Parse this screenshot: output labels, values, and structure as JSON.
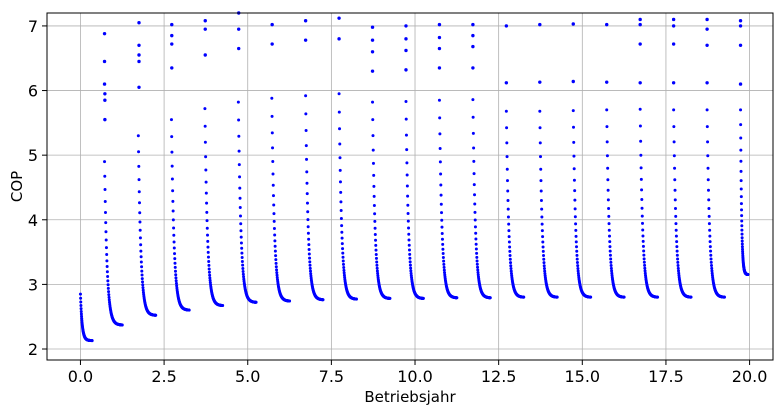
{
  "chart_data": {
    "type": "scatter",
    "title": "",
    "xlabel": "Betriebsjahr",
    "ylabel": "COP",
    "xlim": [
      -1.0,
      20.7
    ],
    "ylim": [
      1.83,
      7.2
    ],
    "xticks": [
      0.0,
      2.5,
      5.0,
      7.5,
      10.0,
      12.5,
      15.0,
      17.5,
      20.0
    ],
    "xtick_labels": [
      "0.0",
      "2.5",
      "5.0",
      "7.5",
      "10.0",
      "12.5",
      "15.0",
      "17.5",
      "20.0"
    ],
    "yticks": [
      2,
      3,
      4,
      5,
      6,
      7
    ],
    "ytick_labels": [
      "2",
      "3",
      "4",
      "5",
      "6",
      "7"
    ],
    "grid": true,
    "series_color": "#0000ff",
    "pattern": "annual heating-season cycles: COP jumps to a peak at the start of each season, decays toward a floor by season end",
    "seasons": [
      {
        "start": 0.0,
        "end": 0.35,
        "peak": 2.85,
        "floor": 2.13
      },
      {
        "start": 0.72,
        "end": 1.25,
        "peak": 4.9,
        "floor": 2.37
      },
      {
        "start": 1.73,
        "end": 2.25,
        "peak": 5.3,
        "floor": 2.52
      },
      {
        "start": 2.72,
        "end": 3.25,
        "peak": 5.55,
        "floor": 2.6
      },
      {
        "start": 3.72,
        "end": 4.25,
        "peak": 5.72,
        "floor": 2.67
      },
      {
        "start": 4.72,
        "end": 5.25,
        "peak": 5.82,
        "floor": 2.72
      },
      {
        "start": 5.72,
        "end": 6.25,
        "peak": 5.88,
        "floor": 2.74
      },
      {
        "start": 6.73,
        "end": 7.25,
        "peak": 5.92,
        "floor": 2.76
      },
      {
        "start": 7.73,
        "end": 8.25,
        "peak": 5.95,
        "floor": 2.77
      },
      {
        "start": 8.73,
        "end": 9.25,
        "peak": 5.82,
        "floor": 2.78
      },
      {
        "start": 9.73,
        "end": 10.25,
        "peak": 5.83,
        "floor": 2.78
      },
      {
        "start": 10.73,
        "end": 11.25,
        "peak": 5.85,
        "floor": 2.79
      },
      {
        "start": 11.73,
        "end": 12.25,
        "peak": 5.86,
        "floor": 2.79
      },
      {
        "start": 12.73,
        "end": 13.25,
        "peak": 5.68,
        "floor": 2.8
      },
      {
        "start": 13.73,
        "end": 14.25,
        "peak": 5.68,
        "floor": 2.8
      },
      {
        "start": 14.73,
        "end": 15.25,
        "peak": 5.69,
        "floor": 2.8
      },
      {
        "start": 15.73,
        "end": 16.25,
        "peak": 5.7,
        "floor": 2.8
      },
      {
        "start": 16.73,
        "end": 17.25,
        "peak": 5.71,
        "floor": 2.8
      },
      {
        "start": 17.73,
        "end": 18.25,
        "peak": 5.7,
        "floor": 2.8
      },
      {
        "start": 18.73,
        "end": 19.25,
        "peak": 5.7,
        "floor": 2.8
      },
      {
        "start": 19.73,
        "end": 19.95,
        "peak": 5.7,
        "floor": 3.15
      }
    ],
    "outliers": [
      {
        "x": 0.72,
        "y": 6.88
      },
      {
        "x": 0.72,
        "y": 6.45
      },
      {
        "x": 0.72,
        "y": 6.1
      },
      {
        "x": 0.73,
        "y": 5.95
      },
      {
        "x": 0.73,
        "y": 5.85
      },
      {
        "x": 0.73,
        "y": 5.55
      },
      {
        "x": 1.75,
        "y": 7.05
      },
      {
        "x": 1.75,
        "y": 6.7
      },
      {
        "x": 1.75,
        "y": 6.55
      },
      {
        "x": 1.75,
        "y": 6.45
      },
      {
        "x": 1.75,
        "y": 6.05
      },
      {
        "x": 2.73,
        "y": 7.02
      },
      {
        "x": 2.73,
        "y": 6.85
      },
      {
        "x": 2.73,
        "y": 6.72
      },
      {
        "x": 2.73,
        "y": 6.35
      },
      {
        "x": 3.73,
        "y": 7.08
      },
      {
        "x": 3.73,
        "y": 6.95
      },
      {
        "x": 3.73,
        "y": 6.55
      },
      {
        "x": 4.73,
        "y": 7.2
      },
      {
        "x": 4.73,
        "y": 6.95
      },
      {
        "x": 4.73,
        "y": 6.65
      },
      {
        "x": 5.73,
        "y": 7.02
      },
      {
        "x": 5.73,
        "y": 6.72
      },
      {
        "x": 6.73,
        "y": 7.08
      },
      {
        "x": 6.73,
        "y": 6.78
      },
      {
        "x": 7.73,
        "y": 7.12
      },
      {
        "x": 7.73,
        "y": 6.8
      },
      {
        "x": 8.73,
        "y": 6.98
      },
      {
        "x": 8.73,
        "y": 6.78
      },
      {
        "x": 8.73,
        "y": 6.6
      },
      {
        "x": 8.73,
        "y": 6.3
      },
      {
        "x": 9.73,
        "y": 7.0
      },
      {
        "x": 9.73,
        "y": 6.8
      },
      {
        "x": 9.73,
        "y": 6.62
      },
      {
        "x": 9.73,
        "y": 6.32
      },
      {
        "x": 10.73,
        "y": 7.02
      },
      {
        "x": 10.73,
        "y": 6.82
      },
      {
        "x": 10.73,
        "y": 6.65
      },
      {
        "x": 10.73,
        "y": 6.35
      },
      {
        "x": 11.73,
        "y": 7.02
      },
      {
        "x": 11.73,
        "y": 6.85
      },
      {
        "x": 11.73,
        "y": 6.68
      },
      {
        "x": 11.73,
        "y": 6.35
      },
      {
        "x": 12.73,
        "y": 7.0
      },
      {
        "x": 12.73,
        "y": 6.12
      },
      {
        "x": 13.73,
        "y": 7.02
      },
      {
        "x": 13.73,
        "y": 6.13
      },
      {
        "x": 14.73,
        "y": 7.03
      },
      {
        "x": 14.73,
        "y": 6.14
      },
      {
        "x": 15.73,
        "y": 7.02
      },
      {
        "x": 15.73,
        "y": 6.13
      },
      {
        "x": 16.73,
        "y": 7.1
      },
      {
        "x": 16.73,
        "y": 7.02
      },
      {
        "x": 16.73,
        "y": 6.72
      },
      {
        "x": 16.73,
        "y": 6.12
      },
      {
        "x": 17.73,
        "y": 7.1
      },
      {
        "x": 17.73,
        "y": 7.0
      },
      {
        "x": 17.73,
        "y": 6.72
      },
      {
        "x": 17.73,
        "y": 6.12
      },
      {
        "x": 18.73,
        "y": 7.1
      },
      {
        "x": 18.73,
        "y": 6.95
      },
      {
        "x": 18.73,
        "y": 6.7
      },
      {
        "x": 18.73,
        "y": 6.12
      },
      {
        "x": 19.73,
        "y": 7.08
      },
      {
        "x": 19.73,
        "y": 7.0
      },
      {
        "x": 19.73,
        "y": 6.7
      },
      {
        "x": 19.73,
        "y": 6.1
      }
    ]
  }
}
